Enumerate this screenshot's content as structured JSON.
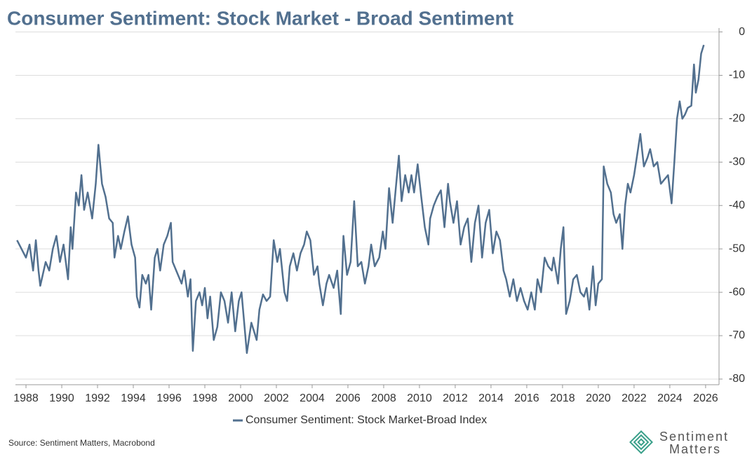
{
  "chart_data": {
    "type": "line",
    "title": "Consumer Sentiment: Stock Market - Broad Sentiment",
    "source": "Source: Sentiment Matters, Macrobond",
    "brand": [
      "Sentiment",
      "Matters"
    ],
    "x": [
      1987.5,
      1988.0,
      1988.2,
      1988.4,
      1988.55,
      1988.7,
      1988.8,
      1989.1,
      1989.3,
      1989.5,
      1989.7,
      1989.9,
      1990.1,
      1990.35,
      1990.5,
      1990.6,
      1990.8,
      1990.95,
      1991.1,
      1991.25,
      1991.45,
      1991.7,
      1991.9,
      1992.05,
      1992.25,
      1992.45,
      1992.65,
      1992.85,
      1992.95,
      1993.15,
      1993.3,
      1993.5,
      1993.7,
      1993.9,
      1994.1,
      1994.2,
      1994.35,
      1994.5,
      1994.7,
      1994.85,
      1995.0,
      1995.2,
      1995.35,
      1995.5,
      1995.7,
      1995.9,
      1996.1,
      1996.2,
      1996.4,
      1996.7,
      1996.85,
      1997.05,
      1997.2,
      1997.33,
      1997.5,
      1997.7,
      1997.85,
      1998.0,
      1998.15,
      1998.3,
      1998.5,
      1998.7,
      1998.9,
      1999.1,
      1999.3,
      1999.5,
      1999.7,
      1999.9,
      2000.05,
      2000.2,
      2000.35,
      2000.6,
      2000.75,
      2000.9,
      2001.05,
      2001.25,
      2001.45,
      2001.65,
      2001.85,
      2002.05,
      2002.2,
      2002.45,
      2002.6,
      2002.75,
      2002.95,
      2003.15,
      2003.35,
      2003.55,
      2003.7,
      2003.9,
      2004.1,
      2004.3,
      2004.4,
      2004.6,
      2004.8,
      2004.95,
      2005.2,
      2005.4,
      2005.6,
      2005.75,
      2005.95,
      2006.15,
      2006.35,
      2006.55,
      2006.75,
      2006.95,
      2007.15,
      2007.3,
      2007.5,
      2007.75,
      2007.95,
      2008.1,
      2008.3,
      2008.5,
      2008.7,
      2008.85,
      2009.0,
      2009.2,
      2009.4,
      2009.55,
      2009.7,
      2009.9,
      2010.1,
      2010.3,
      2010.5,
      2010.6,
      2010.8,
      2011.0,
      2011.2,
      2011.4,
      2011.6,
      2011.7,
      2011.9,
      2012.1,
      2012.3,
      2012.5,
      2012.7,
      2012.9,
      2013.1,
      2013.3,
      2013.5,
      2013.7,
      2013.9,
      2014.1,
      2014.3,
      2014.5,
      2014.7,
      2014.85,
      2015.05,
      2015.25,
      2015.45,
      2015.65,
      2015.85,
      2016.05,
      2016.25,
      2016.45,
      2016.6,
      2016.8,
      2017.0,
      2017.2,
      2017.4,
      2017.5,
      2017.75,
      2017.9,
      2018.05,
      2018.2,
      2018.4,
      2018.6,
      2018.8,
      2019.0,
      2019.2,
      2019.35,
      2019.5,
      2019.7,
      2019.85,
      2020.0,
      2020.2,
      2020.3,
      2020.5,
      2020.7,
      2020.85,
      2021.0,
      2021.2,
      2021.35,
      2021.5,
      2021.65,
      2021.8,
      2022.0,
      2022.15,
      2022.35,
      2022.55,
      2022.75,
      2022.9,
      2023.1,
      2023.3,
      2023.5,
      2023.7,
      2023.9,
      2024.1,
      2024.25,
      2024.4,
      2024.55,
      2024.7,
      2024.85,
      2025.0,
      2025.2,
      2025.35,
      2025.45,
      2025.6,
      2025.75,
      2025.9
    ],
    "series": [
      {
        "name": "Consumer Sentiment: Stock Market-Broad Index",
        "color": "#52708f",
        "values": [
          -48,
          -52,
          -49,
          -55,
          -48,
          -55,
          -58.5,
          -53,
          -55,
          -50,
          -47,
          -53,
          -49,
          -57,
          -45,
          -50,
          -37,
          -40,
          -33,
          -41,
          -37,
          -43,
          -35,
          -26,
          -35,
          -38,
          -43,
          -44,
          -52,
          -47,
          -50,
          -46,
          -42.5,
          -49,
          -52,
          -61,
          -63.5,
          -56,
          -58,
          -56,
          -64,
          -52,
          -50,
          -55,
          -49,
          -47,
          -44,
          -53,
          -55,
          -58,
          -55,
          -61,
          -57,
          -73.5,
          -62,
          -60,
          -63,
          -59,
          -66,
          -61,
          -71,
          -68,
          -60,
          -62,
          -67,
          -60,
          -69,
          -62,
          -60,
          -67,
          -74,
          -67,
          -69,
          -71,
          -64,
          -60.5,
          -62,
          -61,
          -48,
          -53,
          -50,
          -60,
          -62,
          -54,
          -51,
          -55,
          -51,
          -49,
          -46,
          -48,
          -56,
          -54,
          -58,
          -63,
          -58,
          -56,
          -59,
          -55,
          -65,
          -47,
          -56,
          -53,
          -39,
          -54,
          -53,
          -58,
          -54,
          -49,
          -54,
          -52,
          -46,
          -50,
          -36,
          -44,
          -35,
          -28.5,
          -39,
          -33,
          -37,
          -33,
          -37,
          -30.5,
          -38,
          -45,
          -49,
          -43,
          -40,
          -38,
          -36.5,
          -45,
          -35,
          -39,
          -44,
          -39,
          -49,
          -45,
          -43,
          -53,
          -44,
          -40,
          -52,
          -44,
          -41,
          -51,
          -46,
          -48,
          -55,
          -57,
          -61,
          -57,
          -62,
          -59,
          -62,
          -64,
          -60,
          -64,
          -57,
          -60,
          -52,
          -54,
          -55,
          -52,
          -58,
          -50,
          -45,
          -65,
          -62,
          -57,
          -56,
          -60,
          -61,
          -59,
          -64,
          -54,
          -63,
          -58,
          -57,
          -31,
          -35,
          -37,
          -42,
          -44,
          -42,
          -50,
          -40,
          -35,
          -37,
          -33,
          -29,
          -23.5,
          -31,
          -29,
          -27,
          -31,
          -30,
          -35,
          -34,
          -33,
          -39.5,
          -30,
          -20,
          -16,
          -20,
          -19,
          -17.5,
          -17,
          -7.5,
          -14,
          -11,
          -5,
          -3
        ]
      }
    ],
    "xlim": [
      1987.41,
      2026.75
    ],
    "xticks": [
      1988,
      1990,
      1992,
      1994,
      1996,
      1998,
      2000,
      2002,
      2004,
      2006,
      2008,
      2010,
      2012,
      2014,
      2016,
      2018,
      2020,
      2022,
      2024,
      2026
    ],
    "ylim": [
      -81.3,
      0.9
    ],
    "yticks": [
      0,
      -10,
      -20,
      -30,
      -40,
      -50,
      -60,
      -70,
      -80
    ],
    "grid": true
  }
}
